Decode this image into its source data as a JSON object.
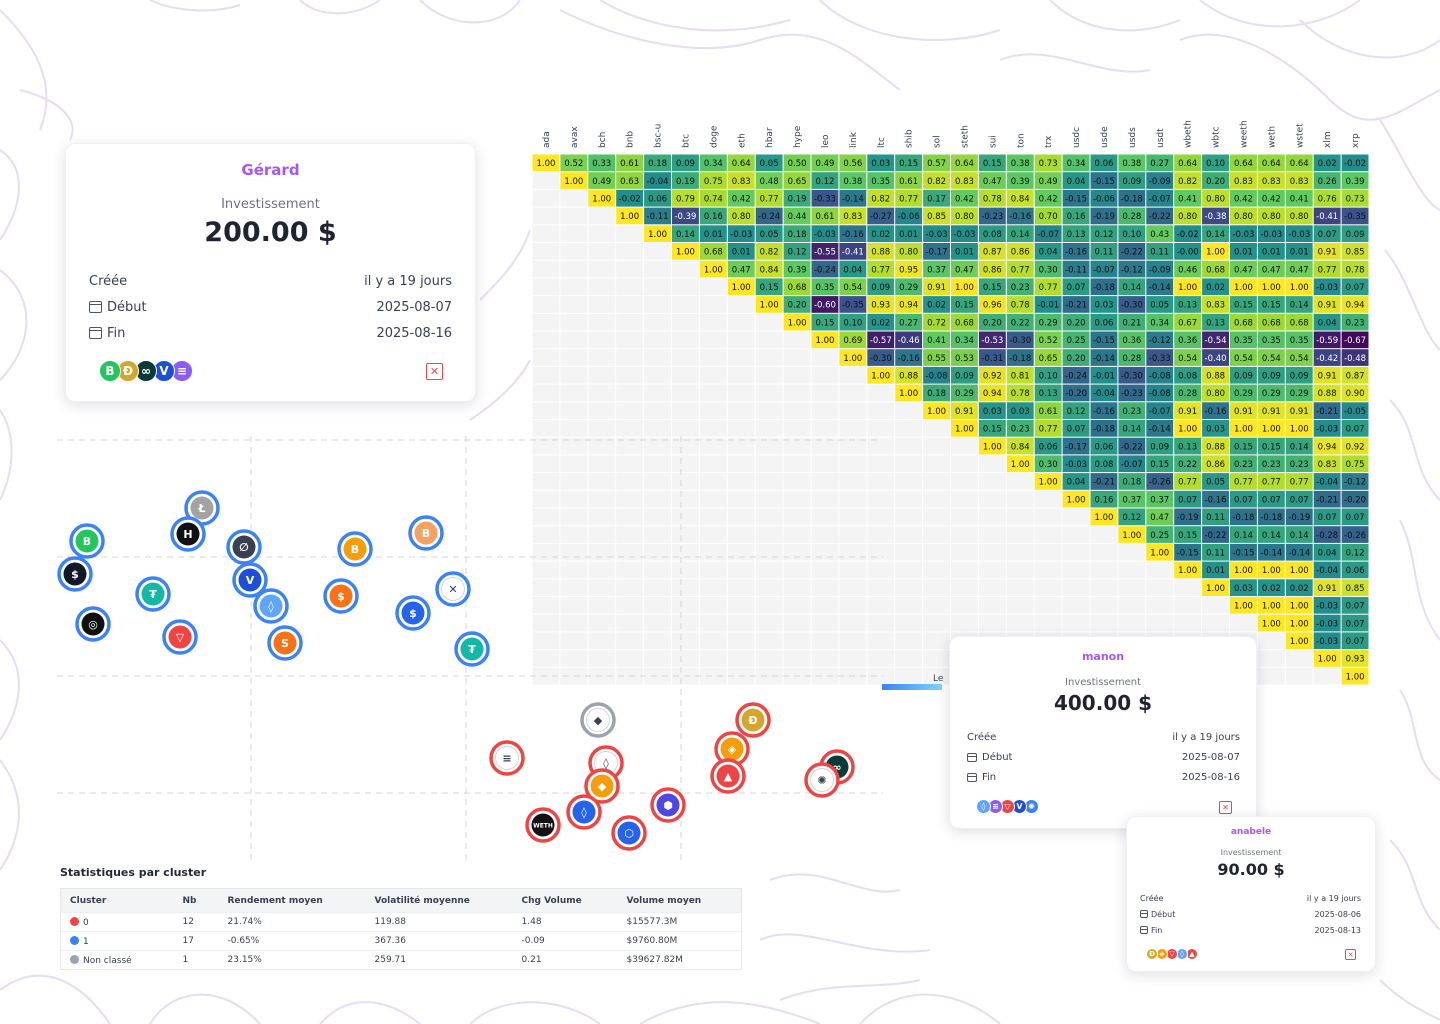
{
  "heatmap": {
    "symbols": [
      "ada",
      "avax",
      "bch",
      "bnb",
      "bsc-u",
      "btc",
      "doge",
      "eth",
      "hbar",
      "hype",
      "leo",
      "link",
      "ltc",
      "shib",
      "sol",
      "steth",
      "sui",
      "ton",
      "trx",
      "usdc",
      "usde",
      "usds",
      "usdt",
      "wbeth",
      "wbtc",
      "weeth",
      "weth",
      "wstet",
      "xlm",
      "xrp"
    ],
    "rows": [
      [
        "1.00",
        "0.52",
        "0.33",
        "0.61",
        "0.18",
        "0.09",
        "0.34",
        "0.64",
        "0.05",
        "0.50",
        "0.49",
        "0.56",
        "0.03",
        "0.15",
        "0.57",
        "0.64",
        "0.15",
        "0.38",
        "0.73",
        "0.34",
        "0.06",
        "0.38",
        "0.27",
        "0.64",
        "0.10",
        "0.64",
        "0.64",
        "0.64",
        "0.02",
        "-0.02"
      ],
      [
        "1.00",
        "0.49",
        "0.63",
        "-0.04",
        "0.19",
        "0.75",
        "0.83",
        "0.48",
        "0.65",
        "0.12",
        "0.38",
        "0.35",
        "0.61",
        "0.82",
        "0.83",
        "0.47",
        "0.39",
        "0.49",
        "0.04",
        "-0.15",
        "0.09",
        "-0.09",
        "0.82",
        "0.20",
        "0.83",
        "0.83",
        "0.83",
        "0.26",
        "0.39"
      ],
      [
        "1.00",
        "-0.02",
        "0.06",
        "0.79",
        "0.74",
        "0.42",
        "0.77",
        "0.19",
        "-0.33",
        "-0.14",
        "0.82",
        "0.77",
        "0.17",
        "0.42",
        "0.78",
        "0.84",
        "0.42",
        "-0.15",
        "-0.06",
        "-0.18",
        "-0.07",
        "0.41",
        "0.80",
        "0.42",
        "0.42",
        "0.41",
        "0.76",
        "0.73"
      ],
      [
        "1.00",
        "-0.11",
        "-0.39",
        "0.16",
        "0.80",
        "-0.24",
        "0.44",
        "0.61",
        "0.83",
        "-0.27",
        "-0.06",
        "0.85",
        "0.80",
        "-0.23",
        "-0.16",
        "0.70",
        "0.16",
        "-0.19",
        "0.28",
        "-0.22",
        "0.80",
        "-0.38",
        "0.80",
        "0.80",
        "0.80",
        "-0.41",
        "-0.35"
      ],
      [
        "1.00",
        "0.14",
        "0.01",
        "-0.03",
        "0.05",
        "0.18",
        "-0.03",
        "-0.16",
        "0.02",
        "0.01",
        "-0.03",
        "-0.03",
        "0.08",
        "0.14",
        "-0.07",
        "0.13",
        "0.12",
        "0.10",
        "0.43",
        "-0.02",
        "0.14",
        "-0.03",
        "-0.03",
        "-0.03",
        "0.07",
        "0.09"
      ],
      [
        "1.00",
        "0.68",
        "0.01",
        "0.82",
        "0.12",
        "-0.55",
        "-0.41",
        "0.88",
        "0.80",
        "-0.17",
        "0.01",
        "0.87",
        "0.86",
        "0.04",
        "-0.16",
        "0.11",
        "-0.22",
        "0.11",
        "-0.00",
        "1.00",
        "0.01",
        "0.01",
        "0.01",
        "0.91",
        "0.85"
      ],
      [
        "1.00",
        "0.47",
        "0.84",
        "0.39",
        "-0.24",
        "0.04",
        "0.77",
        "0.95",
        "0.37",
        "0.47",
        "0.86",
        "0.77",
        "0.30",
        "-0.11",
        "-0.07",
        "-0.12",
        "-0.09",
        "0.46",
        "0.68",
        "0.47",
        "0.47",
        "0.47",
        "0.77",
        "0.78"
      ],
      [
        "1.00",
        "0.15",
        "0.68",
        "0.35",
        "0.54",
        "0.09",
        "0.29",
        "0.91",
        "1.00",
        "0.15",
        "0.23",
        "0.77",
        "0.07",
        "-0.18",
        "0.14",
        "-0.14",
        "1.00",
        "0.02",
        "1.00",
        "1.00",
        "1.00",
        "-0.03",
        "0.07"
      ],
      [
        "1.00",
        "0.20",
        "-0.60",
        "-0.35",
        "0.93",
        "0.94",
        "0.02",
        "0.15",
        "0.96",
        "0.78",
        "-0.01",
        "-0.21",
        "0.03",
        "-0.30",
        "0.05",
        "0.13",
        "0.83",
        "0.15",
        "0.15",
        "0.14",
        "0.91",
        "0.94"
      ],
      [
        "1.00",
        "0.15",
        "0.10",
        "0.02",
        "0.27",
        "0.72",
        "0.68",
        "0.20",
        "0.22",
        "0.29",
        "0.20",
        "0.06",
        "0.21",
        "0.34",
        "0.67",
        "0.13",
        "0.68",
        "0.68",
        "0.68",
        "0.04",
        "0.23"
      ],
      [
        "1.00",
        "0.69",
        "-0.57",
        "-0.46",
        "0.41",
        "0.34",
        "-0.53",
        "-0.30",
        "0.52",
        "0.25",
        "-0.15",
        "0.36",
        "-0.12",
        "0.36",
        "-0.54",
        "0.35",
        "0.35",
        "0.35",
        "-0.59",
        "-0.67"
      ],
      [
        "1.00",
        "-0.30",
        "-0.16",
        "0.55",
        "0.53",
        "-0.31",
        "-0.18",
        "0.65",
        "0.20",
        "-0.14",
        "0.28",
        "-0.33",
        "0.54",
        "-0.40",
        "0.54",
        "0.54",
        "0.54",
        "-0.42",
        "-0.48"
      ],
      [
        "1.00",
        "0.88",
        "-0.08",
        "0.09",
        "0.92",
        "0.81",
        "0.10",
        "-0.24",
        "-0.01",
        "-0.30",
        "-0.08",
        "0.08",
        "0.88",
        "0.09",
        "0.09",
        "0.09",
        "0.91",
        "0.87"
      ],
      [
        "1.00",
        "0.18",
        "0.29",
        "0.94",
        "0.78",
        "0.13",
        "-0.20",
        "-0.04",
        "-0.23",
        "-0.08",
        "0.28",
        "0.80",
        "0.29",
        "0.29",
        "0.29",
        "0.88",
        "0.90"
      ],
      [
        "1.00",
        "0.91",
        "0.03",
        "0.03",
        "0.61",
        "0.12",
        "-0.16",
        "0.23",
        "-0.07",
        "0.91",
        "-0.16",
        "0.91",
        "0.91",
        "0.91",
        "-0.21",
        "-0.05"
      ],
      [
        "1.00",
        "0.15",
        "0.23",
        "0.77",
        "0.07",
        "-0.18",
        "0.14",
        "-0.14",
        "1.00",
        "0.03",
        "1.00",
        "1.00",
        "1.00",
        "-0.03",
        "0.07"
      ],
      [
        "1.00",
        "0.84",
        "0.06",
        "-0.17",
        "0.06",
        "-0.22",
        "0.09",
        "0.13",
        "0.88",
        "0.15",
        "0.15",
        "0.14",
        "0.94",
        "0.92"
      ],
      [
        "1.00",
        "0.30",
        "-0.03",
        "0.08",
        "-0.07",
        "0.15",
        "0.22",
        "0.86",
        "0.23",
        "0.23",
        "0.23",
        "0.83",
        "0.75"
      ],
      [
        "1.00",
        "0.04",
        "-0.21",
        "0.18",
        "-0.26",
        "0.77",
        "0.05",
        "0.77",
        "0.77",
        "0.77",
        "-0.04",
        "-0.12"
      ],
      [
        "1.00",
        "0.16",
        "0.37",
        "0.37",
        "0.07",
        "-0.16",
        "0.07",
        "0.07",
        "0.07",
        "-0.21",
        "-0.20"
      ],
      [
        "1.00",
        "0.12",
        "0.47",
        "-0.19",
        "0.11",
        "-0.18",
        "-0.18",
        "-0.19",
        "0.07",
        "0.07"
      ],
      [
        "1.00",
        "0.25",
        "0.15",
        "-0.22",
        "0.14",
        "0.14",
        "0.14",
        "-0.28",
        "-0.26"
      ],
      [
        "1.00",
        "-0.15",
        "0.11",
        "-0.15",
        "-0.14",
        "-0.14",
        "0.04",
        "0.12"
      ],
      [
        "1.00",
        "0.01",
        "1.00",
        "1.00",
        "1.00",
        "-0.04",
        "0.06"
      ],
      [
        "1.00",
        "0.03",
        "0.02",
        "0.02",
        "0.91",
        "0.85"
      ],
      [
        "1.00",
        "1.00",
        "1.00",
        "-0.03",
        "0.07"
      ],
      [
        "1.00",
        "1.00",
        "-0.03",
        "0.07"
      ],
      [
        "1.00",
        "-0.03",
        "0.07"
      ],
      [
        "1.00",
        "0.93"
      ],
      [
        "1.00"
      ]
    ],
    "colorbar_label_partial": "Le",
    "colorbar_tick_partial": "-"
  },
  "scatter": {
    "coins": [
      {
        "name": "litecoin",
        "cluster": "1",
        "glyph": "Ł",
        "fill": "#a3a3a3"
      },
      {
        "name": "bitcoin-cash",
        "cluster": "1",
        "glyph": "B",
        "fill": "#22c55e"
      },
      {
        "name": "hedera",
        "cluster": "1",
        "glyph": "H",
        "fill": "#111111"
      },
      {
        "name": "stellar",
        "cluster": "1",
        "glyph": "∅",
        "fill": "#374151"
      },
      {
        "name": "bitcoin",
        "cluster": "1",
        "glyph": "B",
        "fill": "#f59e0b"
      },
      {
        "name": "wrapped-bitcoin",
        "cluster": "1",
        "glyph": "B",
        "fill": "#f4a261"
      },
      {
        "name": "usds",
        "cluster": "1",
        "glyph": "$",
        "fill": "#111827"
      },
      {
        "name": "tether",
        "cluster": "1",
        "glyph": "₮",
        "fill": "#14b8a6"
      },
      {
        "name": "vechain",
        "cluster": "1",
        "glyph": "V",
        "fill": "#1d4ed8"
      },
      {
        "name": "xrp",
        "cluster": "1",
        "glyph": "✕",
        "fill": "#ffffff"
      },
      {
        "name": "sui",
        "cluster": "1",
        "glyph": "◊",
        "fill": "#60a5fa"
      },
      {
        "name": "usde",
        "cluster": "1",
        "glyph": "$",
        "fill": "#f97316"
      },
      {
        "name": "usd-coin",
        "cluster": "1",
        "glyph": "$",
        "fill": "#2563eb"
      },
      {
        "name": "leo",
        "cluster": "1",
        "glyph": "◎",
        "fill": "#111111"
      },
      {
        "name": "tron",
        "cluster": "1",
        "glyph": "▽",
        "fill": "#ef4444"
      },
      {
        "name": "shiba-inu",
        "cluster": "1",
        "glyph": "S",
        "fill": "#f97316"
      },
      {
        "name": "bsc-usd",
        "cluster": "1",
        "glyph": "₮",
        "fill": "#14b8a6"
      },
      {
        "name": "ethereum",
        "cluster": "Non classé",
        "glyph": "◆",
        "fill": "#ffffff"
      },
      {
        "name": "dogecoin",
        "cluster": "0",
        "glyph": "Ð",
        "fill": "#d4a72c"
      },
      {
        "name": "binance-coin",
        "cluster": "0",
        "glyph": "◈",
        "fill": "#f59e0b"
      },
      {
        "name": "avalanche",
        "cluster": "0",
        "glyph": "▲",
        "fill": "#ef4444"
      },
      {
        "name": "hyperliquid",
        "cluster": "0",
        "glyph": "∞",
        "fill": "#0b3b36"
      },
      {
        "name": "cardano",
        "cluster": "0",
        "glyph": "✺",
        "fill": "#ffffff"
      },
      {
        "name": "lido-staked-eth",
        "cluster": "0",
        "glyph": "◊",
        "fill": "#ffffff"
      },
      {
        "name": "wbeth",
        "cluster": "0",
        "glyph": "◆",
        "fill": "#f59e0b"
      },
      {
        "name": "staked-ether",
        "cluster": "0",
        "glyph": "◊",
        "fill": "#2563eb"
      },
      {
        "name": "weeth",
        "cluster": "0",
        "glyph": "⬢",
        "fill": "#4f46e5"
      },
      {
        "name": "wrapped-eth",
        "cluster": "0",
        "glyph": "WETH",
        "fill": "#111111"
      },
      {
        "name": "solana",
        "cluster": "0",
        "glyph": "≡",
        "fill": "#ffffff"
      },
      {
        "name": "chainlink",
        "cluster": "0",
        "glyph": "⬡",
        "fill": "#2563eb"
      }
    ]
  },
  "stats": {
    "title": "Statistiques par cluster",
    "headers": [
      "Cluster",
      "Nb",
      "Rendement moyen",
      "Volatilité moyenne",
      "Chg Volume",
      "Volume moyen"
    ],
    "rows": [
      {
        "cluster": "0",
        "color": "#ef4444",
        "nb": "12",
        "rendement": "21.74%",
        "volatilite": "119.88",
        "chg": "1.48",
        "volume": "$15577.3M"
      },
      {
        "cluster": "1",
        "color": "#3b82f6",
        "nb": "17",
        "rendement": "-0.65%",
        "volatilite": "367.36",
        "chg": "-0.09",
        "volume": "$9760.80M"
      },
      {
        "cluster": "Non classé",
        "color": "#9ca3af",
        "nb": "1",
        "rendement": "23.15%",
        "volatilite": "259.71",
        "chg": "0.21",
        "volume": "$39627.82M"
      }
    ]
  },
  "cards": [
    {
      "id": "gerard",
      "name": "Gérard",
      "investment_label": "Investissement",
      "amount": "200.00 $",
      "created_label": "Créée",
      "created_value": "il y a 19 jours",
      "start_label": "Début",
      "start_value": "2025-08-07",
      "end_label": "Fin",
      "end_value": "2025-08-16",
      "coins": [
        {
          "name": "bitcoin-cash",
          "glyph": "B",
          "fill": "#22c55e"
        },
        {
          "name": "dogecoin",
          "glyph": "Ð",
          "fill": "#d4a72c"
        },
        {
          "name": "hyperliquid",
          "glyph": "∞",
          "fill": "#0b3b36"
        },
        {
          "name": "vechain",
          "glyph": "V",
          "fill": "#1d4ed8"
        },
        {
          "name": "solana",
          "glyph": "≡",
          "fill": "#8b5cf6"
        }
      ],
      "delete_glyph": "✕"
    },
    {
      "id": "manon",
      "name": "manon",
      "investment_label": "Investissement",
      "amount": "400.00 $",
      "created_label": "Créée",
      "created_value": "il y a 19 jours",
      "start_label": "Début",
      "start_value": "2025-08-07",
      "end_label": "Fin",
      "end_value": "2025-08-16",
      "coins": [
        {
          "name": "sui",
          "glyph": "◊",
          "fill": "#60a5fa"
        },
        {
          "name": "solana",
          "glyph": "≡",
          "fill": "#8b5cf6"
        },
        {
          "name": "tron",
          "glyph": "▽",
          "fill": "#ef4444"
        },
        {
          "name": "vechain",
          "glyph": "V",
          "fill": "#1d4ed8"
        },
        {
          "name": "cardano",
          "glyph": "✺",
          "fill": "#3b82f6"
        }
      ],
      "delete_glyph": "✕"
    },
    {
      "id": "anabele",
      "name": "anabele",
      "investment_label": "Investissement",
      "amount": "90.00 $",
      "created_label": "Créée",
      "created_value": "il y a 19 jours",
      "start_label": "Début",
      "start_value": "2025-08-06",
      "end_label": "Fin",
      "end_value": "2025-08-13",
      "coins": [
        {
          "name": "dogecoin",
          "glyph": "Ð",
          "fill": "#d4a72c"
        },
        {
          "name": "binance-coin",
          "glyph": "◈",
          "fill": "#f59e0b"
        },
        {
          "name": "tron",
          "glyph": "▽",
          "fill": "#ef4444"
        },
        {
          "name": "sui",
          "glyph": "◊",
          "fill": "#60a5fa"
        },
        {
          "name": "avalanche",
          "glyph": "▲",
          "fill": "#ef4444"
        }
      ],
      "delete_glyph": "✕"
    }
  ],
  "colors": {
    "accent": "#a855f7",
    "cluster0": "#ef4444",
    "cluster1": "#3b82f6",
    "unclassified": "#9ca3af",
    "delete": "#ef4444"
  }
}
